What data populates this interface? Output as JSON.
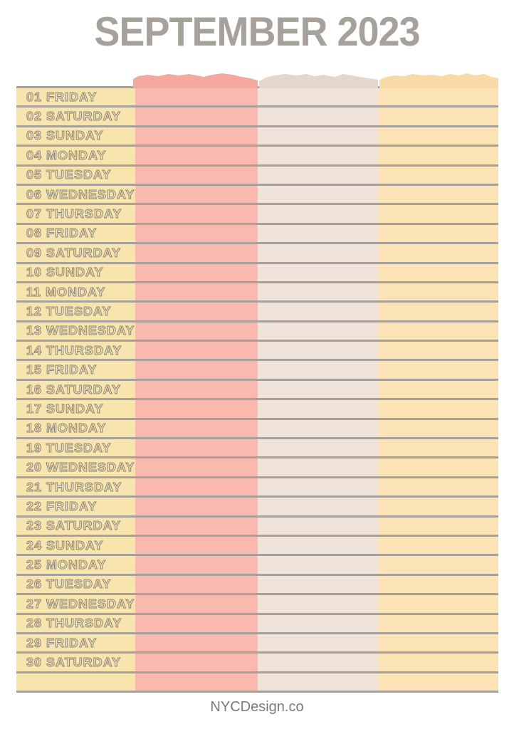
{
  "title": "SEPTEMBER 2023",
  "footer": "NYCDesign.co",
  "colors": {
    "title": "#a7a19c",
    "line": "#a8a19b",
    "day_outline": "#8a847c",
    "col_yellow": "#f7e5ad",
    "col_pink": "#f9b9af",
    "col_taupe": "#f0e4da",
    "col_orange": "#fce3b6",
    "torn_pink": "#f5a89e",
    "torn_taupe": "#e5d6cc",
    "torn_orange": "#f9d9a8",
    "footer_text": "#7b7b7b"
  },
  "days": [
    "01 FRIDAY",
    "02 SATURDAY",
    "03 SUNDAY",
    "04 MONDAY",
    "05 TUESDAY",
    "06 WEDNESDAY",
    "07 THURSDAY",
    "08 FRIDAY",
    "09 SATURDAY",
    "10 SUNDAY",
    "11 MONDAY",
    "12 TUESDAY",
    "13 WEDNESDAY",
    "14 THURSDAY",
    "15 FRIDAY",
    "16 SATURDAY",
    "17 SUNDAY",
    "18 MONDAY",
    "19 TUESDAY",
    "20 WEDNESDAY",
    "21 THURSDAY",
    "22 FRIDAY",
    "23 SATURDAY",
    "24 SUNDAY",
    "25 MONDAY",
    "26 TUESDAY",
    "27 WEDNESDAY",
    "28 THURSDAY",
    "29 FRIDAY",
    "30 SATURDAY"
  ],
  "trailing_empty_rows": 1
}
